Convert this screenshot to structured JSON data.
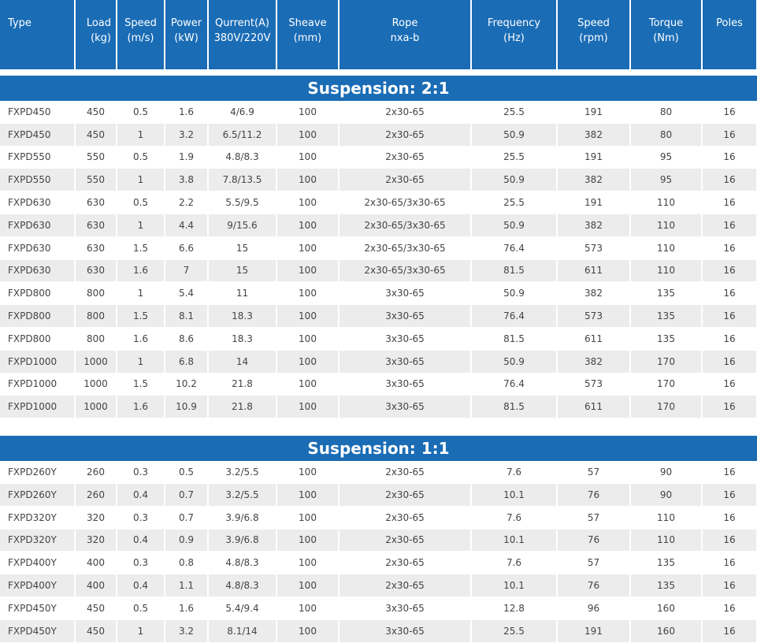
{
  "columns": [
    {
      "l1": "Type",
      "l2": ""
    },
    {
      "l1": "Load",
      "l2": "(kg)"
    },
    {
      "l1": "Speed",
      "l2": "(m/s)"
    },
    {
      "l1": "Power",
      "l2": "(kW)"
    },
    {
      "l1": "Qurrent(A)",
      "l2": "380V/220V"
    },
    {
      "l1": "Sheave",
      "l2": "(mm)"
    },
    {
      "l1": "Rope",
      "l2": "nxa-b"
    },
    {
      "l1": "Frequency",
      "l2": "(Hz)"
    },
    {
      "l1": "Speed",
      "l2": "(rpm)"
    },
    {
      "l1": "Torque",
      "l2": "(Nm)"
    },
    {
      "l1": "Poles",
      "l2": ""
    }
  ],
  "sections": [
    {
      "title": "Suspension: 2:1",
      "rows": [
        [
          "FXPD450",
          "450",
          "0.5",
          "1.6",
          "4/6.9",
          "100",
          "2x30-65",
          "25.5",
          "191",
          "80",
          "16"
        ],
        [
          "FXPD450",
          "450",
          "1",
          "3.2",
          "6.5/11.2",
          "100",
          "2x30-65",
          "50.9",
          "382",
          "80",
          "16"
        ],
        [
          "FXPD550",
          "550",
          "0.5",
          "1.9",
          "4.8/8.3",
          "100",
          "2x30-65",
          "25.5",
          "191",
          "95",
          "16"
        ],
        [
          "FXPD550",
          "550",
          "1",
          "3.8",
          "7.8/13.5",
          "100",
          "2x30-65",
          "50.9",
          "382",
          "95",
          "16"
        ],
        [
          "FXPD630",
          "630",
          "0.5",
          "2.2",
          "5.5/9.5",
          "100",
          "2x30-65/3x30-65",
          "25.5",
          "191",
          "110",
          "16"
        ],
        [
          "FXPD630",
          "630",
          "1",
          "4.4",
          "9/15.6",
          "100",
          "2x30-65/3x30-65",
          "50.9",
          "382",
          "110",
          "16"
        ],
        [
          "FXPD630",
          "630",
          "1.5",
          "6.6",
          "15",
          "100",
          "2x30-65/3x30-65",
          "76.4",
          "573",
          "110",
          "16"
        ],
        [
          "FXPD630",
          "630",
          "1.6",
          "7",
          "15",
          "100",
          "2x30-65/3x30-65",
          "81.5",
          "611",
          "110",
          "16"
        ],
        [
          "FXPD800",
          "800",
          "1",
          "5.4",
          "11",
          "100",
          "3x30-65",
          "50.9",
          "382",
          "135",
          "16"
        ],
        [
          "FXPD800",
          "800",
          "1.5",
          "8.1",
          "18.3",
          "100",
          "3x30-65",
          "76.4",
          "573",
          "135",
          "16"
        ],
        [
          "FXPD800",
          "800",
          "1.6",
          "8.6",
          "18.3",
          "100",
          "3x30-65",
          "81.5",
          "611",
          "135",
          "16"
        ],
        [
          "FXPD1000",
          "1000",
          "1",
          "6.8",
          "14",
          "100",
          "3x30-65",
          "50.9",
          "382",
          "170",
          "16"
        ],
        [
          "FXPD1000",
          "1000",
          "1.5",
          "10.2",
          "21.8",
          "100",
          "3x30-65",
          "76.4",
          "573",
          "170",
          "16"
        ],
        [
          "FXPD1000",
          "1000",
          "1.6",
          "10.9",
          "21.8",
          "100",
          "3x30-65",
          "81.5",
          "611",
          "170",
          "16"
        ]
      ]
    },
    {
      "title": "Suspension: 1:1",
      "rows": [
        [
          "FXPD260Y",
          "260",
          "0.3",
          "0.5",
          "3.2/5.5",
          "100",
          "2x30-65",
          "7.6",
          "57",
          "90",
          "16"
        ],
        [
          "FXPD260Y",
          "260",
          "0.4",
          "0.7",
          "3.2/5.5",
          "100",
          "2x30-65",
          "10.1",
          "76",
          "90",
          "16"
        ],
        [
          "FXPD320Y",
          "320",
          "0.3",
          "0.7",
          "3.9/6.8",
          "100",
          "2x30-65",
          "7.6",
          "57",
          "110",
          "16"
        ],
        [
          "FXPD320Y",
          "320",
          "0.4",
          "0.9",
          "3.9/6.8",
          "100",
          "2x30-65",
          "10.1",
          "76",
          "110",
          "16"
        ],
        [
          "FXPD400Y",
          "400",
          "0.3",
          "0.8",
          "4.8/8.3",
          "100",
          "2x30-65",
          "7.6",
          "57",
          "135",
          "16"
        ],
        [
          "FXPD400Y",
          "400",
          "0.4",
          "1.1",
          "4.8/8.3",
          "100",
          "2x30-65",
          "10.1",
          "76",
          "135",
          "16"
        ],
        [
          "FXPD450Y",
          "450",
          "0.5",
          "1.6",
          "5.4/9.4",
          "100",
          "3x30-65",
          "12.8",
          "96",
          "160",
          "16"
        ],
        [
          "FXPD450Y",
          "450",
          "1",
          "3.2",
          "8.1/14",
          "100",
          "3x30-65",
          "25.5",
          "191",
          "160",
          "16"
        ]
      ]
    }
  ]
}
